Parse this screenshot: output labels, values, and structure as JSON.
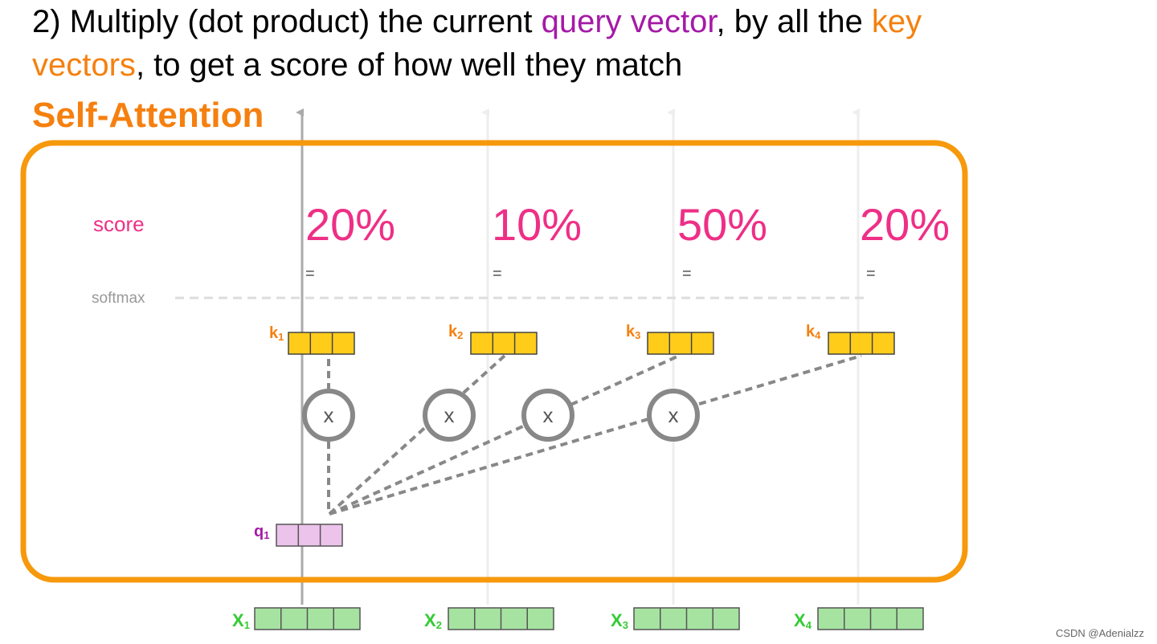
{
  "headline": {
    "prefix": "2) Multiply (dot product) the current ",
    "query_term": "query vector",
    "middle": ", by all the ",
    "key_term_part1": "key",
    "key_term_part2": "vectors",
    "suffix": ", to get a score of how well they match"
  },
  "section_title": "Self-Attention",
  "labels": {
    "score": "score",
    "softmax": "softmax",
    "equals": "=",
    "multiply": "x"
  },
  "scores": [
    "20%",
    "10%",
    "50%",
    "20%"
  ],
  "keys": [
    {
      "name": "k",
      "sub": "1"
    },
    {
      "name": "k",
      "sub": "2"
    },
    {
      "name": "k",
      "sub": "3"
    },
    {
      "name": "k",
      "sub": "4"
    }
  ],
  "query": {
    "name": "q",
    "sub": "1"
  },
  "inputs": [
    {
      "name": "x",
      "sub": "1"
    },
    {
      "name": "x",
      "sub": "2"
    },
    {
      "name": "x",
      "sub": "3"
    },
    {
      "name": "x",
      "sub": "4"
    }
  ],
  "colors": {
    "orange": "#f5800f",
    "purple": "#a51aa6",
    "pink_score": "#ee2f86",
    "key_fill": "#ffcc1a",
    "query_fill": "#ecc3ea",
    "input_fill": "#a6e3a1",
    "green_label": "#33cc33",
    "gray": "#888888"
  },
  "watermark": "CSDN @Adenialzz"
}
